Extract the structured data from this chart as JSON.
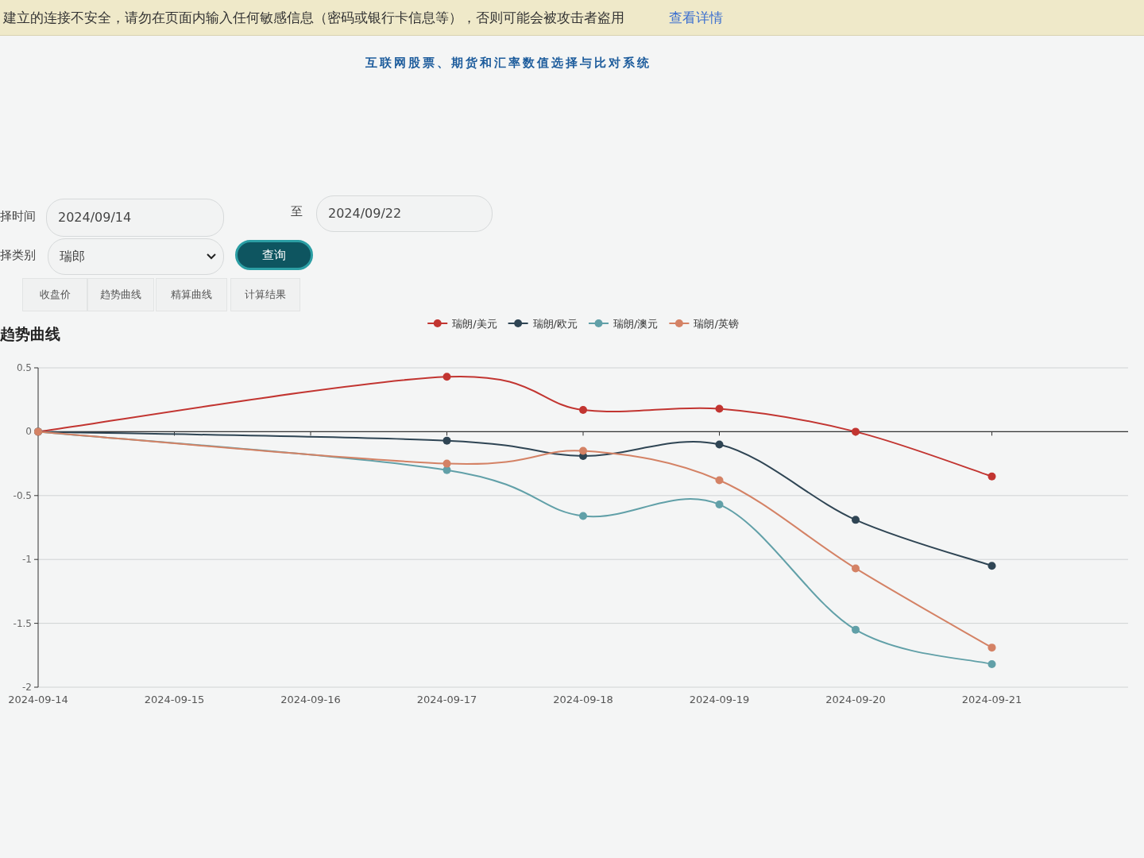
{
  "chart_data": {
    "type": "line",
    "title": "互联网股票、期货和汇率数值选择与比对系统",
    "subtitle": "趋势曲线",
    "annotations": [
      "建立的连接不安全，请勿在页面内输入任何敏感信息（密码或银行卡信息等），否则可能会被攻击者盗用",
      "查看详情",
      "择时间",
      "2024/09/14",
      "至",
      "2024/09/22",
      "择类别",
      "瑞郎",
      "查询",
      "收盘价",
      "趋势曲线",
      "精算曲线",
      "计算结果"
    ],
    "x": [
      "2024-09-14",
      "2024-09-17",
      "2024-09-18",
      "2024-09-19",
      "2024-09-20",
      "2024-09-21"
    ],
    "series": [
      {
        "name": "瑞朗/美元",
        "color": "#c23531",
        "values": [
          0,
          0.43,
          0.17,
          0.18,
          0,
          -0.35
        ]
      },
      {
        "name": "瑞朗/欧元",
        "color": "#2f4554",
        "values": [
          0,
          -0.07,
          -0.19,
          -0.1,
          -0.69,
          -1.05
        ]
      },
      {
        "name": "瑞朗/澳元",
        "color": "#61a0a8",
        "values": [
          0,
          -0.3,
          -0.66,
          -0.57,
          -1.55,
          -1.82
        ]
      },
      {
        "name": "瑞朗/英镑",
        "color": "#d48265",
        "values": [
          0,
          -0.25,
          -0.15,
          -0.38,
          -1.07,
          -1.69
        ]
      }
    ],
    "xlim": [
      "2024-09-14",
      "2024-09-22"
    ],
    "xticks": [
      "2024-09-14",
      "2024-09-15",
      "2024-09-16",
      "2024-09-17",
      "2024-09-18",
      "2024-09-19",
      "2024-09-20",
      "2024-09-21"
    ],
    "ylim": [
      -2,
      0.5
    ],
    "yticks": [
      0.5,
      0,
      -0.5,
      -1,
      -1.5,
      -2
    ],
    "grid": "y",
    "legend": "top",
    "marker": "circle",
    "line_style": "solid"
  }
}
